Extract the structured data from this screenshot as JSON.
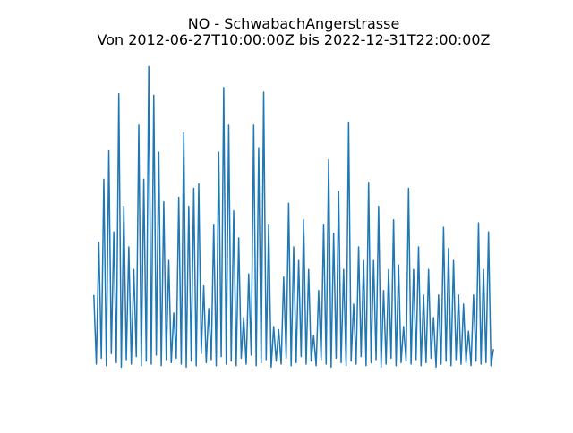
{
  "chart_data": {
    "type": "line",
    "title": "NO - SchwabachAngerstrasse",
    "subtitle": "Von 2012-06-27T10:00:00Z bis 2022-12-31T22:00:00Z",
    "color": "#1f77b4",
    "ylim": [
      -10,
      210
    ],
    "values": [
      48,
      2,
      83,
      6,
      125,
      1,
      144,
      9,
      90,
      3,
      182,
      0,
      107,
      5,
      80,
      2,
      65,
      7,
      161,
      1,
      125,
      4,
      200,
      2,
      181,
      8,
      143,
      1,
      110,
      5,
      71,
      3,
      36,
      6,
      113,
      2,
      156,
      0,
      107,
      4,
      119,
      1,
      122,
      9,
      54,
      3,
      39,
      5,
      95,
      1,
      143,
      7,
      186,
      2,
      161,
      4,
      104,
      1,
      86,
      6,
      33,
      2,
      62,
      8,
      161,
      1,
      146,
      3,
      183,
      5,
      95,
      0,
      27,
      4,
      25,
      2,
      60,
      6,
      109,
      1,
      80,
      3,
      71,
      7,
      98,
      2,
      65,
      4,
      21,
      1,
      51,
      5,
      95,
      2,
      138,
      0,
      89,
      6,
      117,
      3,
      65,
      1,
      163,
      4,
      42,
      2,
      80,
      7,
      71,
      1,
      123,
      3,
      71,
      5,
      107,
      0,
      51,
      2,
      65,
      6,
      98,
      1,
      68,
      3,
      27,
      4,
      119,
      2,
      65,
      5,
      80,
      1,
      48,
      3,
      65,
      6,
      33,
      0,
      48,
      2,
      93,
      4,
      79,
      1,
      71,
      5,
      48,
      2,
      42,
      3,
      24,
      1,
      48,
      4,
      96,
      2,
      65,
      3,
      90,
      1,
      12
    ]
  }
}
